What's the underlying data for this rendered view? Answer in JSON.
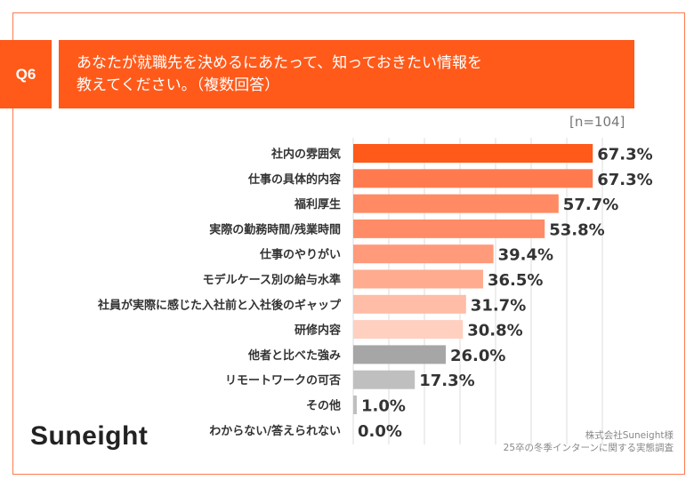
{
  "header": {
    "question_no": "Q6",
    "title_line1": "あなたが就職先を決めるにあたって、知っておきたい情報を",
    "title_line2": "教えてください。（複数回答）",
    "sample": "[n=104]"
  },
  "footer": {
    "logo": "Suneight",
    "source_line1": "株式会社Suneight様",
    "source_line2": "25卒の冬季インターンに関する実態調査"
  },
  "chart_data": {
    "type": "bar",
    "orientation": "horizontal",
    "xlim": [
      0,
      70
    ],
    "grid": true,
    "unit": "%",
    "categories": [
      "社内の雰囲気",
      "仕事の具体的内容",
      "福利厚生",
      "実際の勤務時間/残業時間",
      "仕事のやりがい",
      "モデルケース別の給与水準",
      "社員が実際に感じた入社前と入社後のギャップ",
      "研修内容",
      "他者と比べた強み",
      "リモートワークの可否",
      "その他",
      "わからない/答えられない"
    ],
    "values": [
      67.3,
      67.3,
      57.7,
      53.8,
      39.4,
      36.5,
      31.7,
      30.8,
      26.0,
      17.3,
      1.0,
      0.0
    ],
    "labels": [
      "67.3%",
      "67.3%",
      "57.7%",
      "53.8%",
      "39.4%",
      "36.5%",
      "31.7%",
      "30.8%",
      "26.0%",
      "17.3%",
      "1.0%",
      "0.0%"
    ],
    "colors": [
      "#FF5A1A",
      "#FF7B4F",
      "#FF8A63",
      "#FF8C66",
      "#FF9A7A",
      "#FFAB90",
      "#FFBCA6",
      "#FFD0C0",
      "#A6A6A6",
      "#BFBFBF",
      "#BFBFBF",
      "#BFBFBF"
    ]
  }
}
